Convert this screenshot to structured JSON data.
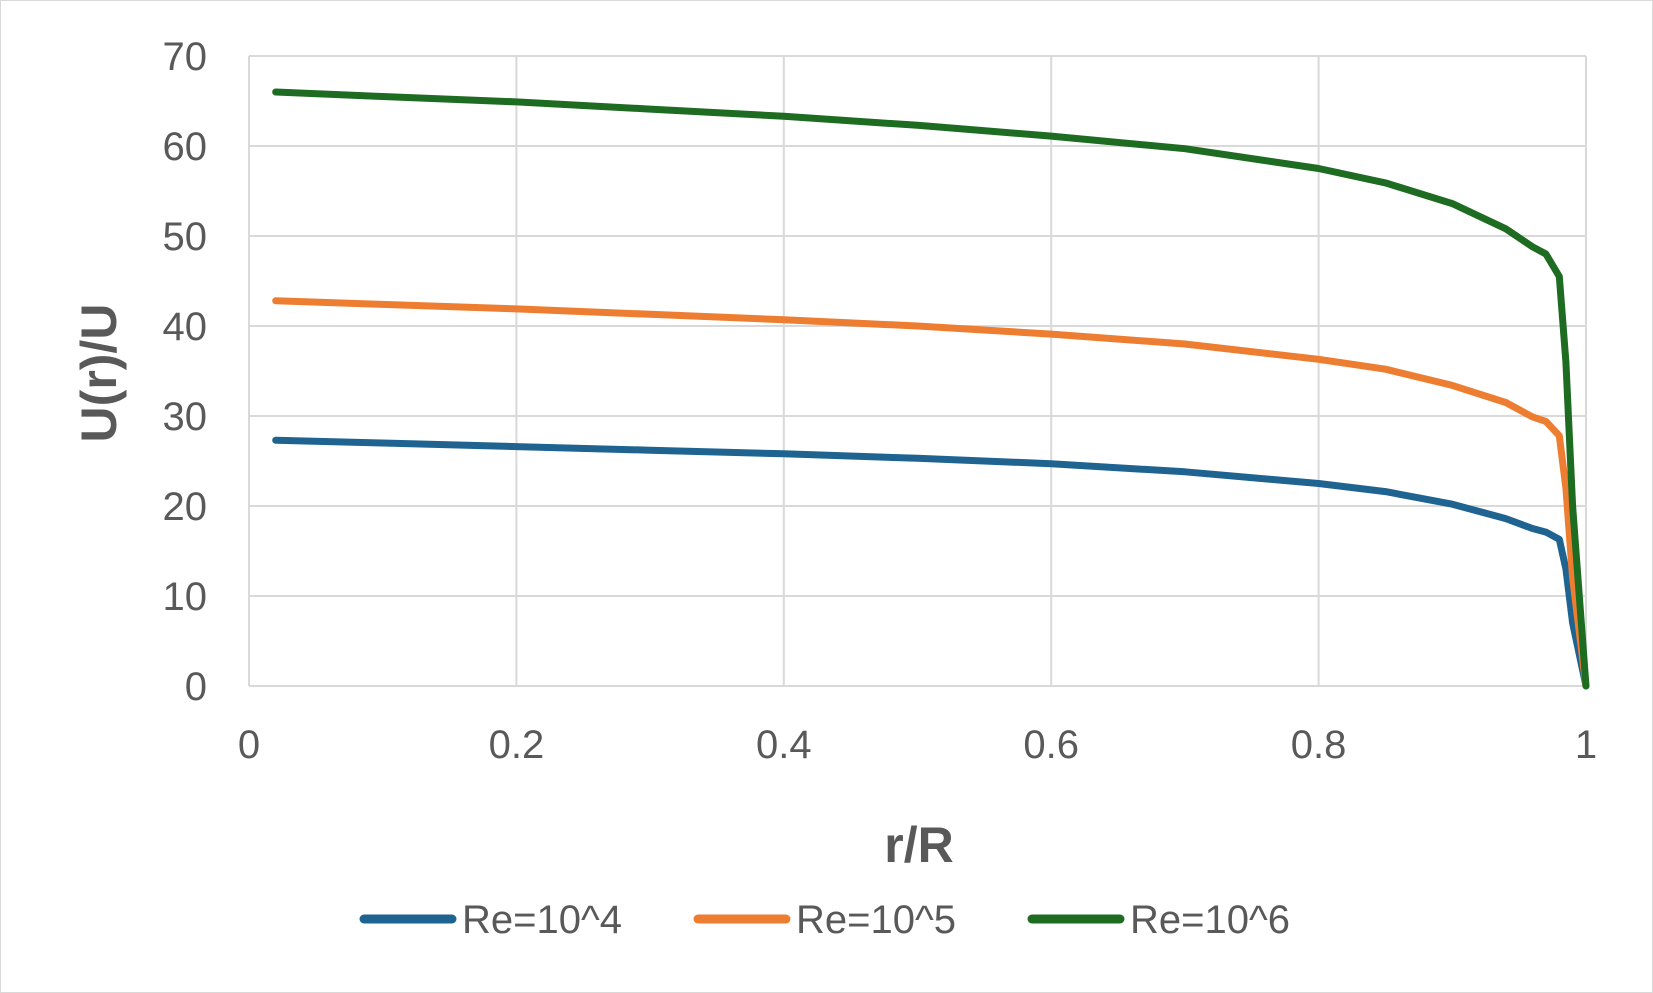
{
  "chart_data": {
    "type": "line",
    "xlabel": "r/R",
    "ylabel": "U(r)/U",
    "xlim": [
      0,
      1
    ],
    "ylim": [
      0,
      70
    ],
    "xticks": [
      "0",
      "0.2",
      "0.4",
      "0.6",
      "0.8",
      "1"
    ],
    "yticks": [
      "0",
      "10",
      "20",
      "30",
      "40",
      "50",
      "60",
      "70"
    ],
    "grid": true,
    "legend_position": "bottom",
    "series": [
      {
        "name": "Re=10^4",
        "color": "#1f6391",
        "x": [
          0.02,
          0.1,
          0.2,
          0.3,
          0.4,
          0.5,
          0.6,
          0.7,
          0.8,
          0.85,
          0.9,
          0.94,
          0.96,
          0.97,
          0.98,
          0.985,
          0.99,
          1.0
        ],
        "y": [
          27.3,
          27.0,
          26.6,
          26.2,
          25.8,
          25.3,
          24.7,
          23.8,
          22.5,
          21.6,
          20.2,
          18.6,
          17.5,
          17.1,
          16.3,
          13.0,
          7.0,
          0
        ]
      },
      {
        "name": "Re=10^5",
        "color": "#ed7d31",
        "x": [
          0.02,
          0.1,
          0.2,
          0.3,
          0.4,
          0.5,
          0.6,
          0.7,
          0.8,
          0.85,
          0.9,
          0.94,
          0.96,
          0.97,
          0.98,
          0.985,
          0.99,
          1.0
        ],
        "y": [
          42.8,
          42.4,
          41.9,
          41.3,
          40.7,
          40.0,
          39.1,
          38.0,
          36.3,
          35.2,
          33.4,
          31.5,
          29.9,
          29.4,
          27.8,
          22.0,
          12.0,
          0
        ]
      },
      {
        "name": "Re=10^6",
        "color": "#1e6b22",
        "x": [
          0.02,
          0.1,
          0.2,
          0.3,
          0.4,
          0.5,
          0.6,
          0.7,
          0.8,
          0.85,
          0.9,
          0.94,
          0.96,
          0.97,
          0.98,
          0.985,
          0.99,
          1.0
        ],
        "y": [
          66.0,
          65.5,
          64.9,
          64.1,
          63.3,
          62.3,
          61.1,
          59.7,
          57.5,
          55.9,
          53.6,
          50.8,
          48.8,
          48.0,
          45.5,
          36.0,
          20.0,
          0
        ]
      }
    ]
  }
}
